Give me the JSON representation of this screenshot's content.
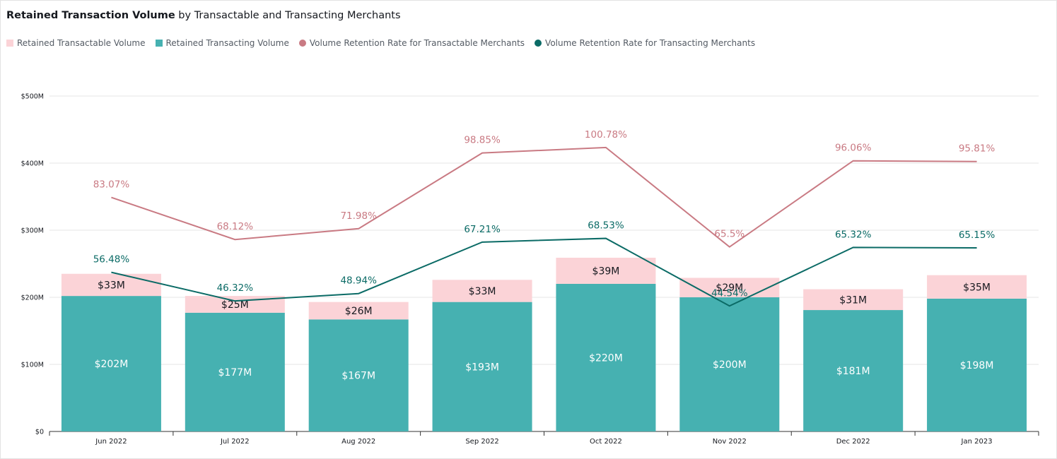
{
  "title": {
    "bold": "Retained Transaction Volume",
    "rest": " by Transactable and Transacting Merchants"
  },
  "legend": [
    {
      "label": "Retained Transactable Volume",
      "color": "#fbd3d7",
      "shape": "square"
    },
    {
      "label": "Retained Transacting Volume",
      "color": "#46b1b1",
      "shape": "square"
    },
    {
      "label": "Volume Retention Rate for Transactable Merchants",
      "color": "#c97a83",
      "shape": "dot"
    },
    {
      "label": "Volume Retention Rate for Transacting Merchants",
      "color": "#0b6b66",
      "shape": "dot"
    }
  ],
  "chart_data": {
    "type": "bar",
    "stacked": true,
    "categories": [
      "Jun 2022",
      "Jul 2022",
      "Aug 2022",
      "Sep 2022",
      "Oct 2022",
      "Nov 2022",
      "Dec 2022",
      "Jan 2023"
    ],
    "ylim": [
      0,
      500
    ],
    "y_ticks": [
      0,
      100,
      200,
      300,
      400,
      500
    ],
    "y_tick_labels": [
      "$0",
      "$100M",
      "$200M",
      "$300M",
      "$400M",
      "$500M"
    ],
    "grid": true,
    "legend_position": "top-left",
    "series": [
      {
        "name": "Retained Transacting Volume",
        "color": "#46b1b1",
        "values": [
          202,
          177,
          167,
          193,
          220,
          200,
          181,
          198
        ],
        "labels": [
          "$202M",
          "$177M",
          "$167M",
          "$193M",
          "$220M",
          "$200M",
          "$181M",
          "$198M"
        ]
      },
      {
        "name": "Retained Transactable Volume",
        "color": "#fbd3d7",
        "values": [
          33,
          25,
          26,
          33,
          39,
          29,
          31,
          35
        ],
        "labels": [
          "$33M",
          "$25M",
          "$26M",
          "$33M",
          "$39M",
          "$29M",
          "$31M",
          "$35M"
        ]
      }
    ],
    "lines": [
      {
        "name": "Volume Retention Rate for Transactable Merchants",
        "color": "#c97a83",
        "values": [
          83.07,
          68.12,
          71.98,
          98.85,
          100.78,
          65.5,
          96.06,
          95.81
        ],
        "labels": [
          "83.07%",
          "68.12%",
          "71.98%",
          "98.85%",
          "100.78%",
          "65.5%",
          "96.06%",
          "95.81%"
        ]
      },
      {
        "name": "Volume Retention Rate for Transacting Merchants",
        "color": "#0b6b66",
        "values": [
          56.48,
          46.32,
          48.94,
          67.21,
          68.53,
          44.54,
          65.32,
          65.15
        ],
        "labels": [
          "56.48%",
          "46.32%",
          "48.94%",
          "67.21%",
          "68.53%",
          "44.54%",
          "65.32%",
          "65.15%"
        ]
      }
    ]
  }
}
